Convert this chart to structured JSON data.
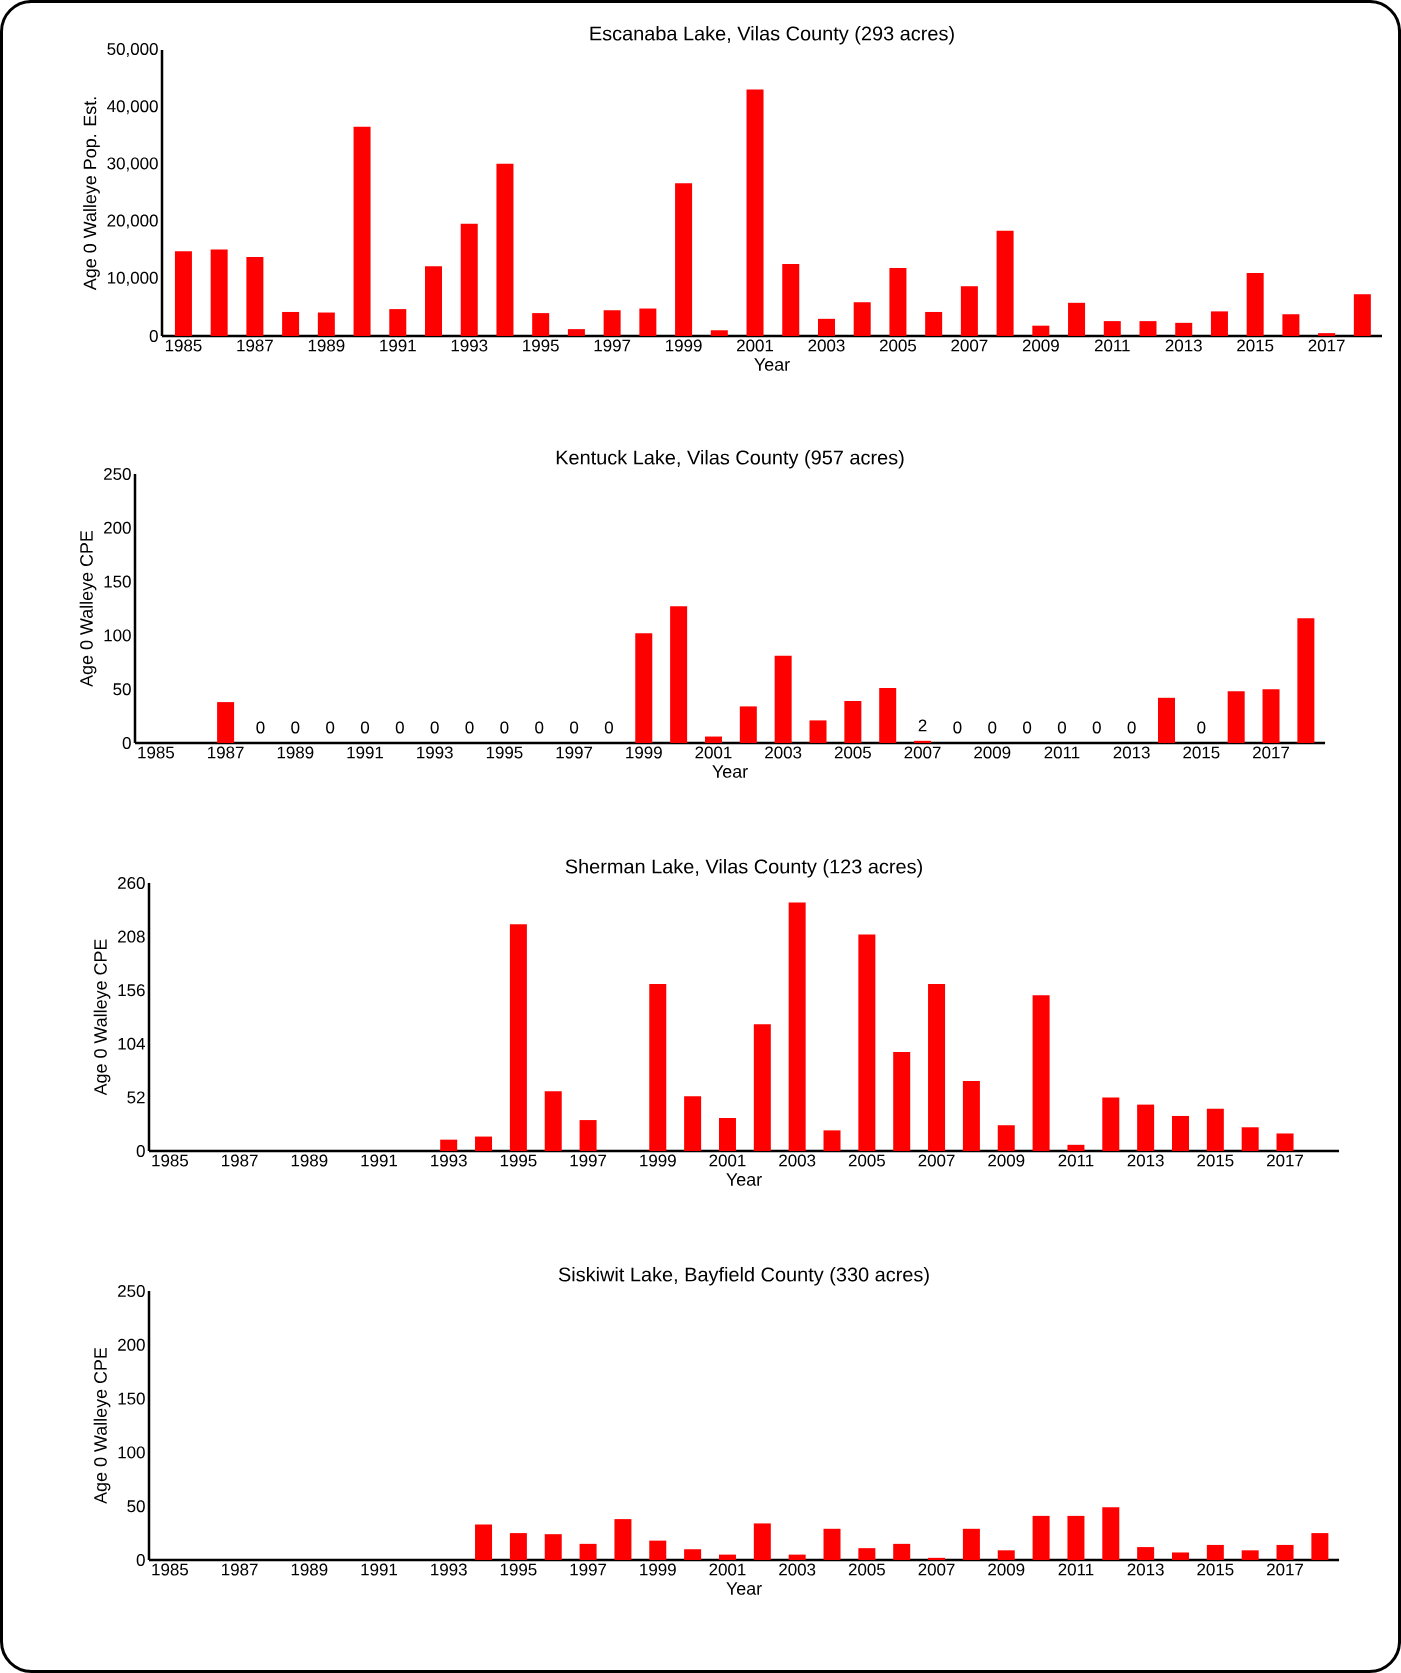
{
  "chart_data": [
    {
      "type": "bar",
      "title": "Escanaba Lake, Vilas County (293 acres)",
      "xlabel": "Year",
      "ylabel": "Age 0 Walleye Pop. Est.",
      "color": "#ff0000",
      "categories": [
        "1985",
        null,
        "1987",
        null,
        "1989",
        null,
        "1991",
        null,
        "1993",
        null,
        "1995",
        null,
        "1997",
        null,
        "1999",
        null,
        "2001",
        null,
        "2003",
        null,
        "2005",
        null,
        "2007",
        null,
        "2009",
        null,
        "2011",
        null,
        "2013",
        null,
        "2015",
        null,
        "2017",
        null
      ],
      "values": [
        14800,
        15100,
        13800,
        4200,
        4100,
        36600,
        4700,
        12200,
        19600,
        30100,
        4000,
        1200,
        4500,
        4800,
        26700,
        1000,
        43100,
        12600,
        3000,
        5900,
        11900,
        4200,
        8700,
        18400,
        1800,
        5800,
        2600,
        2600,
        2300,
        4300,
        11000,
        3800,
        500,
        7300
      ],
      "ylim": [
        0,
        50000
      ],
      "yticks": [
        0,
        {
          "value": 10000,
          "label": "10,000"
        },
        {
          "value": 20000,
          "label": "20,000"
        },
        {
          "value": 30000,
          "label": "30,000"
        },
        {
          "value": 40000,
          "label": "40,000"
        },
        {
          "value": 50000,
          "label": "50,000"
        }
      ]
    },
    {
      "type": "bar",
      "title": "Kentuck Lake, Vilas County (957 acres)",
      "xlabel": "Year",
      "ylabel": "Age 0 Walleye CPE",
      "color": "#ff0000",
      "categories": [
        "1985",
        null,
        "1987",
        null,
        "1989",
        null,
        "1991",
        null,
        "1993",
        null,
        "1995",
        null,
        "1997",
        null,
        "1999",
        null,
        "2001",
        null,
        "2003",
        null,
        "2005",
        null,
        "2007",
        null,
        "2009",
        null,
        "2011",
        null,
        "2013",
        null,
        "2015",
        null,
        "2017",
        null
      ],
      "values": [
        null,
        null,
        38,
        0,
        0,
        0,
        0,
        0,
        0,
        0,
        0,
        0,
        0,
        0,
        102,
        127,
        6,
        34,
        81,
        21,
        39,
        51,
        2,
        0,
        0,
        0,
        0,
        0,
        0,
        42,
        0,
        48,
        50,
        116
      ],
      "value_labels": [
        null,
        null,
        null,
        "0",
        "0",
        "0",
        "0",
        "0",
        "0",
        "0",
        "0",
        "0",
        "0",
        "0",
        null,
        null,
        null,
        null,
        null,
        null,
        null,
        null,
        "2",
        "0",
        "0",
        "0",
        "0",
        "0",
        "0",
        null,
        "0",
        null,
        null,
        null
      ],
      "ylim": [
        0,
        250
      ],
      "yticks": [
        0,
        50,
        100,
        150,
        200,
        250
      ]
    },
    {
      "type": "bar",
      "title": "Sherman Lake, Vilas County (123 acres)",
      "xlabel": "Year",
      "ylabel": "Age 0 Walleye CPE",
      "color": "#ff0000",
      "categories": [
        "1985",
        null,
        "1987",
        null,
        "1989",
        null,
        "1991",
        null,
        "1993",
        null,
        "1995",
        null,
        "1997",
        null,
        "1999",
        null,
        "2001",
        null,
        "2003",
        null,
        "2005",
        null,
        "2007",
        null,
        "2009",
        null,
        "2011",
        null,
        "2013",
        null,
        "2015",
        null,
        "2017",
        null
      ],
      "values": [
        null,
        null,
        null,
        null,
        null,
        null,
        null,
        null,
        11,
        14,
        220,
        58,
        30,
        null,
        162,
        53,
        32,
        123,
        241,
        20,
        210,
        96,
        162,
        68,
        25,
        151,
        6,
        52,
        45,
        34,
        41,
        23,
        17,
        null
      ],
      "ylim": [
        0,
        260
      ],
      "yticks": [
        0,
        52,
        104,
        156,
        208,
        260
      ]
    },
    {
      "type": "bar",
      "title": "Siskiwit Lake, Bayfield County (330 acres)",
      "xlabel": "Year",
      "ylabel": "Age 0 Walleye CPE",
      "color": "#ff0000",
      "categories": [
        "1985",
        null,
        "1987",
        null,
        "1989",
        null,
        "1991",
        null,
        "1993",
        null,
        "1995",
        null,
        "1997",
        null,
        "1999",
        null,
        "2001",
        null,
        "2003",
        null,
        "2005",
        null,
        "2007",
        null,
        "2009",
        null,
        "2011",
        null,
        "2013",
        null,
        "2015",
        null,
        "2017",
        null
      ],
      "values": [
        null,
        null,
        null,
        null,
        null,
        null,
        null,
        null,
        null,
        33,
        25,
        24,
        15,
        38,
        18,
        10,
        5,
        34,
        5,
        29,
        11,
        15,
        2,
        29,
        9,
        41,
        41,
        49,
        12,
        7,
        14,
        9,
        14,
        25
      ],
      "ylim": [
        0,
        250
      ],
      "yticks": [
        0,
        50,
        100,
        150,
        200,
        250
      ]
    }
  ]
}
